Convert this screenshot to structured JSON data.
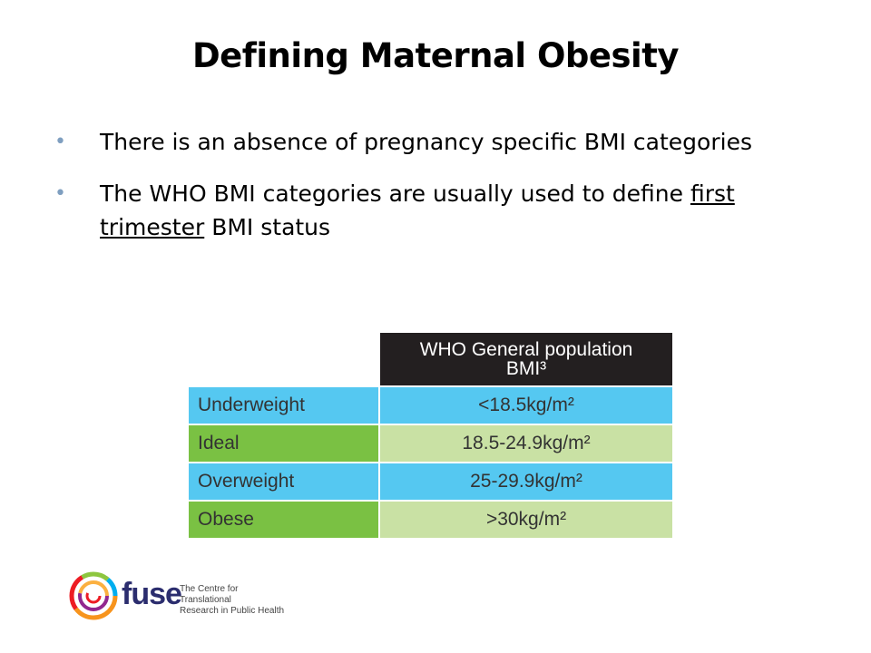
{
  "slide": {
    "title": "Defining Maternal Obesity",
    "bullets": [
      {
        "text": "There is an absence of pregnancy specific BMI categories"
      },
      {
        "text_before": "The WHO BMI categories are usually used to define ",
        "underlined": "first trimester",
        "text_after": " BMI status"
      }
    ]
  },
  "table": {
    "header": "WHO General population BMI³",
    "rows": [
      {
        "label": "Underweight",
        "value": "<18.5kg/m²"
      },
      {
        "label": "Ideal",
        "value": "18.5-24.9kg/m²"
      },
      {
        "label": "Overweight",
        "value": "25-29.9kg/m²"
      },
      {
        "label": "Obese",
        "value": ">30kg/m²"
      }
    ],
    "colors": {
      "header_bg": "#231f20",
      "blue": "#55c8f1",
      "green_label": "#7ac143",
      "green_value": "#c9e1a4"
    }
  },
  "logo": {
    "name": "fuse",
    "tagline_line1": "The Centre for Translational",
    "tagline_line2": "Research in Public Health"
  }
}
